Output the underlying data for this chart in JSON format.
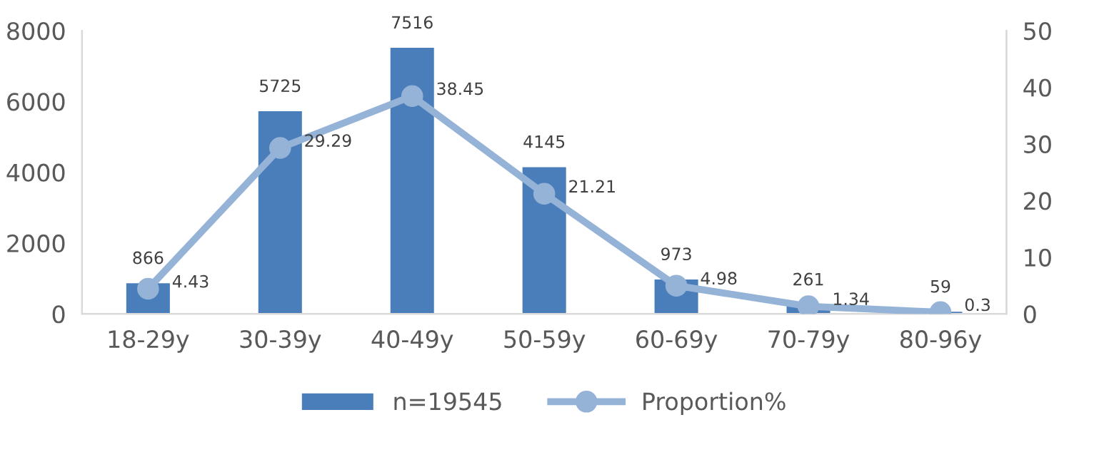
{
  "chart_data": {
    "type": "bar",
    "categories": [
      "18-29y",
      "30-39y",
      "40-49y",
      "50-59y",
      "60-69y",
      "70-79y",
      "80-96y"
    ],
    "series": [
      {
        "name": "n=19545",
        "color": "#4a7ebb",
        "values": [
          866,
          5725,
          7516,
          4145,
          973,
          261,
          59
        ]
      },
      {
        "name": "Proportion%",
        "type": "line",
        "axis": "y2",
        "color": "#95b3d7",
        "marker": "circle",
        "values": [
          4.43,
          29.29,
          38.45,
          21.21,
          4.98,
          1.34,
          0.3
        ]
      }
    ],
    "ylim": [
      0,
      8000
    ],
    "yticks": [
      0,
      2000,
      4000,
      6000,
      8000
    ],
    "y2lim": [
      0,
      50
    ],
    "y2ticks": [
      0,
      10,
      20,
      30,
      40,
      50
    ],
    "data_labels": true,
    "legend": "bottom",
    "grid": false
  }
}
